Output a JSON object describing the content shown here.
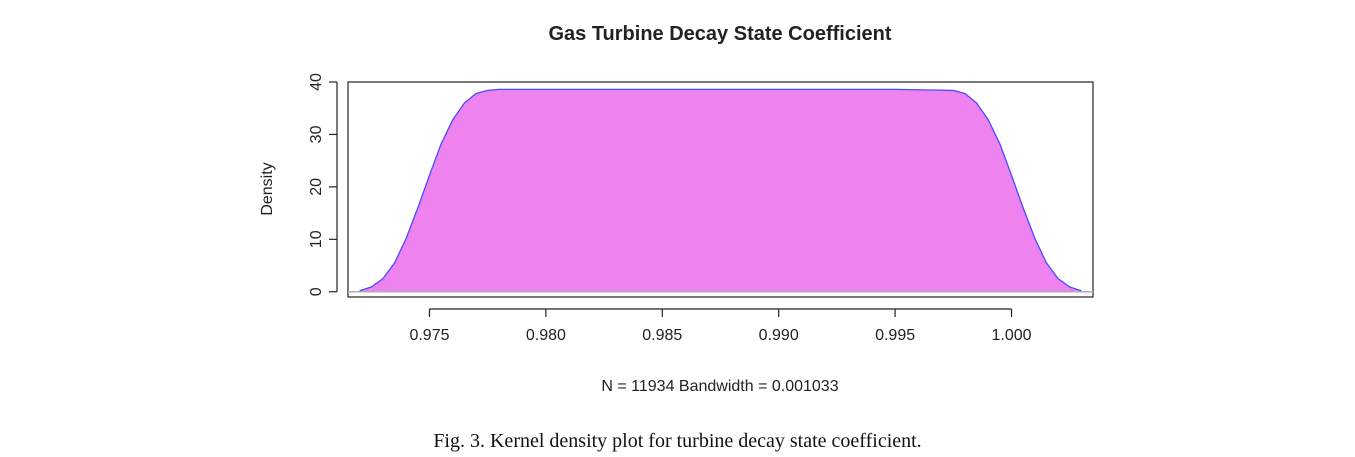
{
  "chart_data": {
    "type": "area",
    "title": "Gas Turbine Decay State Coefficient",
    "xlabel": "N = 11934   Bandwidth = 0.001033",
    "ylabel": "Density",
    "xlim": [
      0.9715,
      1.0035
    ],
    "ylim": [
      -1,
      40
    ],
    "x_ticks": [
      0.975,
      0.98,
      0.985,
      0.99,
      0.995,
      1.0
    ],
    "x_tick_labels": [
      "0.975",
      "0.980",
      "0.985",
      "0.990",
      "0.995",
      "1.000"
    ],
    "y_ticks": [
      0,
      10,
      20,
      30,
      40
    ],
    "y_tick_labels": [
      "0",
      "10",
      "20",
      "30",
      "40"
    ],
    "grid": false,
    "fill_color": "#EE82EE",
    "line_color": "#4a4aff",
    "baseline_color": "#b0b0b0",
    "x": [
      0.972,
      0.9725,
      0.973,
      0.9735,
      0.974,
      0.9745,
      0.975,
      0.9755,
      0.976,
      0.9765,
      0.977,
      0.9775,
      0.978,
      0.98,
      0.985,
      0.99,
      0.995,
      0.9975,
      0.998,
      0.9985,
      0.999,
      0.9995,
      1.0,
      1.0005,
      1.001,
      1.0015,
      1.002,
      1.0025,
      1.003
    ],
    "y": [
      0.2,
      0.9,
      2.5,
      5.5,
      10.2,
      16.0,
      22.2,
      28.2,
      32.8,
      36.0,
      37.8,
      38.4,
      38.6,
      38.6,
      38.6,
      38.6,
      38.6,
      38.4,
      37.8,
      36.0,
      32.8,
      28.2,
      22.2,
      16.0,
      10.2,
      5.5,
      2.5,
      0.9,
      0.2
    ]
  },
  "caption": "Fig. 3. Kernel density plot for turbine decay state coefficient."
}
